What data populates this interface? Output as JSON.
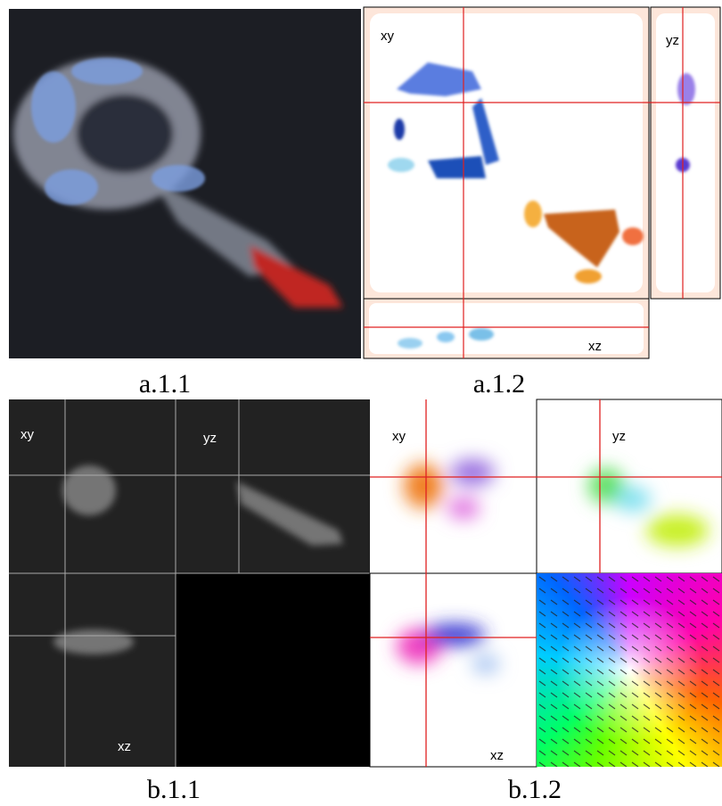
{
  "panels": [
    {
      "label": "a.1.1"
    },
    {
      "label": "a.1.2",
      "views": [
        "xy",
        "yz",
        "xz"
      ]
    },
    {
      "label": "b.1.1",
      "views": [
        "xy",
        "yz",
        "xz"
      ]
    },
    {
      "label": "b.1.2",
      "views": [
        "xy",
        "yz",
        "xz"
      ]
    }
  ]
}
